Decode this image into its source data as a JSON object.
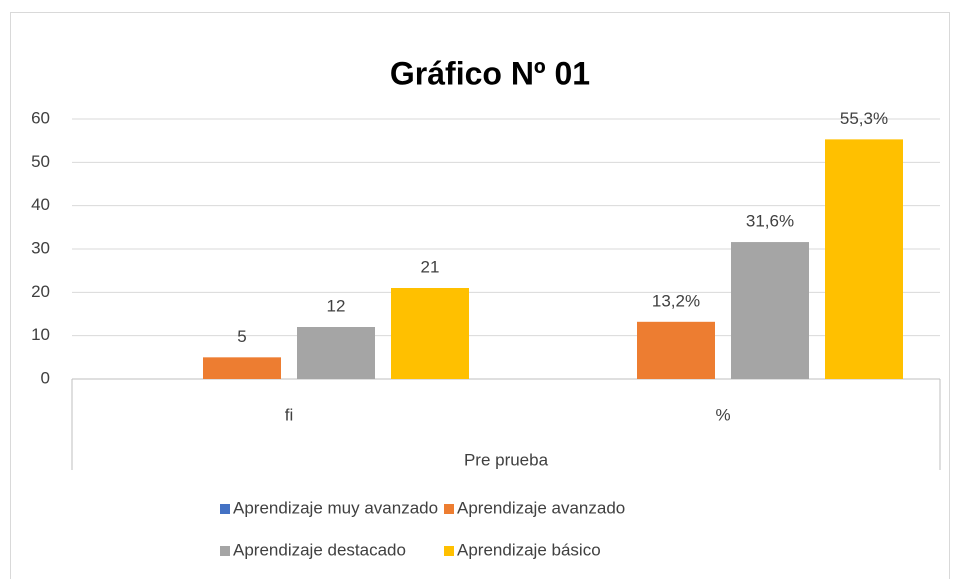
{
  "chart_data": {
    "type": "bar",
    "title": "Gráfico Nº 01",
    "categories": [
      "fi",
      "%"
    ],
    "xlabel": "Pre prueba",
    "series": [
      {
        "name": "Aprendizaje muy avanzado",
        "color": "#4472c4",
        "values": [
          0,
          0
        ]
      },
      {
        "name": "Aprendizaje avanzado",
        "color": "#ed7d31",
        "values": [
          5,
          13.2
        ],
        "value_labels": [
          "5",
          "13,2%"
        ]
      },
      {
        "name": "Aprendizaje destacado",
        "color": "#a5a5a5",
        "values": [
          12,
          31.6
        ],
        "value_labels": [
          "12",
          "31,6%"
        ]
      },
      {
        "name": "Aprendizaje básico",
        "color": "#ffc000",
        "values": [
          21,
          55.3
        ],
        "value_labels": [
          "21",
          "55,3%"
        ]
      }
    ],
    "ylim": [
      0,
      60
    ],
    "yticks": [
      0,
      10,
      20,
      30,
      40,
      50,
      60
    ],
    "grid": true
  }
}
